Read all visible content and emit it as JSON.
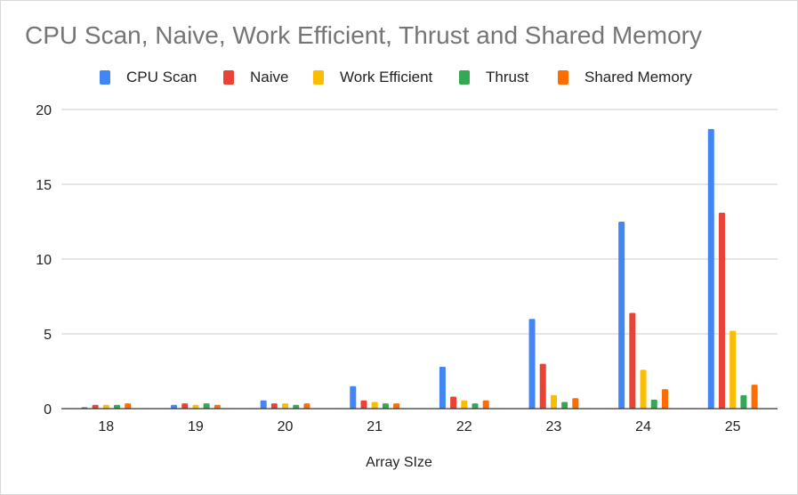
{
  "chart_data": {
    "type": "bar",
    "title": "CPU Scan, Naive, Work Efficient, Thrust  and Shared Memory",
    "xlabel": "Array SIze",
    "ylabel": "",
    "ylim": [
      0,
      20
    ],
    "yticks": [
      0,
      5,
      10,
      15,
      20
    ],
    "grid": true,
    "legend_position": "top",
    "categories": [
      "18",
      "19",
      "20",
      "21",
      "22",
      "23",
      "24",
      "25"
    ],
    "series": [
      {
        "name": "CPU Scan",
        "color": "#4285F4",
        "values": [
          0.1,
          0.25,
          0.55,
          1.5,
          2.8,
          6.0,
          12.5,
          18.7
        ]
      },
      {
        "name": "Naive",
        "color": "#EA4335",
        "values": [
          0.25,
          0.35,
          0.35,
          0.55,
          0.8,
          3.0,
          6.4,
          13.1
        ]
      },
      {
        "name": "Work Efficient",
        "color": "#FBBC04",
        "values": [
          0.25,
          0.25,
          0.35,
          0.45,
          0.55,
          0.9,
          2.6,
          5.2
        ]
      },
      {
        "name": "Thrust",
        "color": "#34A853",
        "values": [
          0.25,
          0.35,
          0.25,
          0.35,
          0.35,
          0.45,
          0.6,
          0.9
        ]
      },
      {
        "name": "Shared Memory",
        "color": "#FF6D01",
        "values": [
          0.35,
          0.25,
          0.35,
          0.35,
          0.55,
          0.7,
          1.3,
          1.6
        ]
      }
    ]
  }
}
